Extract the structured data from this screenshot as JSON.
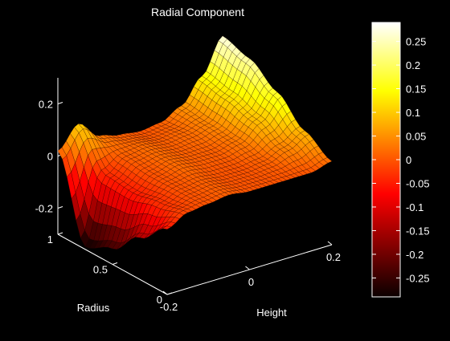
{
  "chart_data": {
    "type": "surface",
    "title": "Radial Component",
    "xlabel": "Height",
    "ylabel": "Radius",
    "zlabel": "",
    "x_range": [
      -0.2,
      0.2
    ],
    "y_range": [
      0,
      1
    ],
    "z_range": [
      -0.3,
      0.3
    ],
    "x_ticks": [
      {
        "value": -0.2,
        "label": "-0.2"
      },
      {
        "value": 0,
        "label": "0"
      },
      {
        "value": 0.2,
        "label": "0.2"
      }
    ],
    "y_ticks": [
      {
        "value": 0,
        "label": "0"
      },
      {
        "value": 0.5,
        "label": "0.5"
      },
      {
        "value": 1,
        "label": "1"
      }
    ],
    "z_ticks": [
      {
        "value": -0.2,
        "label": "-0.2"
      },
      {
        "value": 0,
        "label": "0"
      },
      {
        "value": 0.2,
        "label": "0.2"
      }
    ],
    "colormap": "hot",
    "colorbar": {
      "min": -0.29,
      "max": 0.29,
      "ticks": [
        {
          "value": 0.25,
          "label": "0.25"
        },
        {
          "value": 0.2,
          "label": "0.2"
        },
        {
          "value": 0.15,
          "label": "0.15"
        },
        {
          "value": 0.1,
          "label": "0.1"
        },
        {
          "value": 0.05,
          "label": "0.05"
        },
        {
          "value": 0,
          "label": "0"
        },
        {
          "value": -0.05,
          "label": "-0.05"
        },
        {
          "value": -0.1,
          "label": "-0.1"
        },
        {
          "value": -0.15,
          "label": "-0.15"
        },
        {
          "value": -0.2,
          "label": "-0.2"
        },
        {
          "value": -0.25,
          "label": "-0.25"
        }
      ]
    },
    "surface": {
      "height_samples": [
        -0.2,
        -0.15,
        -0.1,
        -0.05,
        0,
        0.05,
        0.1,
        0.15,
        0.2
      ],
      "radius_samples": [
        0,
        0.25,
        0.5,
        0.75,
        1
      ],
      "z": [
        [
          -0.05,
          -0.01,
          0.0,
          0.01,
          0.0,
          0.0,
          0.0,
          0.0,
          0.02
        ],
        [
          -0.14,
          -0.03,
          0.0,
          0.01,
          0.0,
          0.0,
          0.01,
          0.04,
          0.08
        ],
        [
          -0.24,
          -0.05,
          0.0,
          0.02,
          0.01,
          0.01,
          0.03,
          0.09,
          0.17
        ],
        [
          -0.29,
          -0.04,
          0.01,
          0.02,
          0.01,
          0.02,
          0.04,
          0.12,
          0.24
        ],
        [
          0.02,
          0.1,
          0.03,
          0.01,
          0.0,
          0.01,
          0.05,
          0.14,
          0.27
        ]
      ]
    }
  }
}
